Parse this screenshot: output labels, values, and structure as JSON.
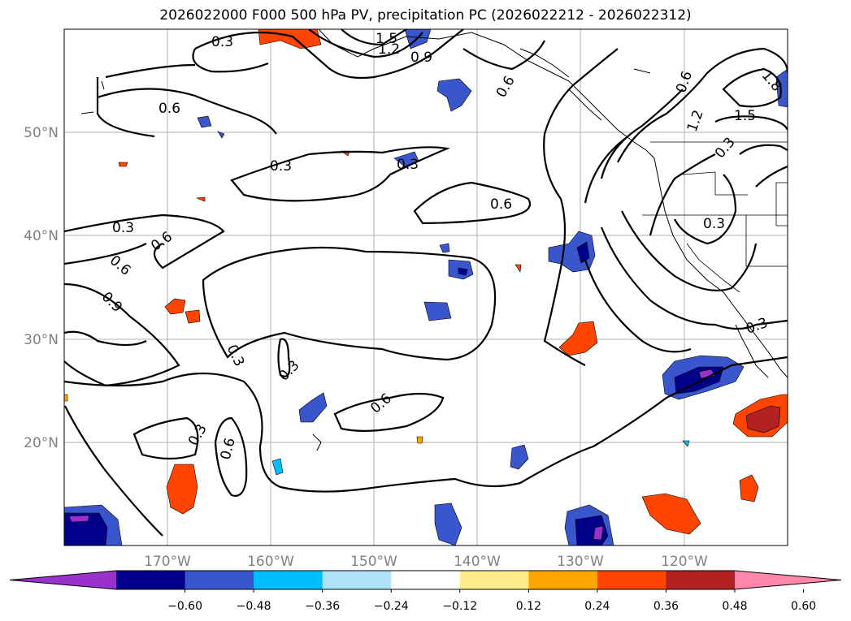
{
  "title": "2026022000 F000 500 hPa PV, precipitation PC (2026022212 - 2026022312)",
  "map": {
    "lat_labels": [
      "50°N",
      "40°N",
      "30°N",
      "20°N"
    ],
    "lon_labels": [
      "170°W",
      "160°W",
      "150°W",
      "140°W",
      "130°W",
      "120°W"
    ],
    "contour_labels": [
      "0.3",
      "1.5",
      "1.2",
      "0.9",
      "0.6",
      "0.6",
      "0.6",
      "1.2",
      "1.5",
      "1.8",
      "0.3",
      "0.3",
      "0.3",
      "0.6",
      "0.3",
      "0.6",
      "0.6",
      "0.9",
      "0.3",
      "0.3",
      "0.3",
      "0.6",
      "0.6",
      "0.3",
      "0.3"
    ]
  },
  "colorbar": {
    "labels": [
      "−0.60",
      "−0.48",
      "−0.36",
      "−0.24",
      "−0.12",
      "0.12",
      "0.24",
      "0.36",
      "0.48",
      "0.60"
    ],
    "colors": [
      "#9932cc",
      "#00008b",
      "#3a56cc",
      "#00bfff",
      "#ade2fa",
      "#ffffff",
      "#ffec8b",
      "#ffa500",
      "#ff4500",
      "#b22222",
      "#ff88aa"
    ]
  }
}
